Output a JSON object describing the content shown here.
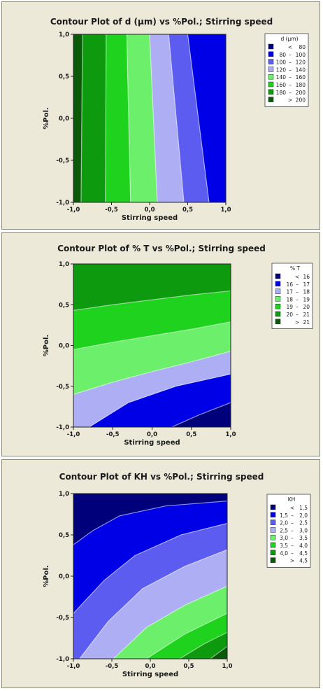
{
  "chart_data": [
    {
      "type": "contour",
      "title": "Contour Plot of d (µm) vs %Pol.; Stirring speed",
      "xlabel": "Stirring speed",
      "ylabel": "%Pol.",
      "xlim": [
        -1.0,
        1.0
      ],
      "ylim": [
        -1.0,
        1.0
      ],
      "x_ticks": [
        "-1,0",
        "-0,5",
        "0,0",
        "0,5",
        "1,0"
      ],
      "y_ticks": [
        "-1,0",
        "-0,5",
        "0,0",
        "0,5",
        "1,0"
      ],
      "legend_title": "d (µm)",
      "legend_position": "right",
      "legend": [
        {
          "lo": "",
          "sep": "<",
          "hi": "80",
          "color": "#00007a"
        },
        {
          "lo": "80",
          "sep": "–",
          "hi": "100",
          "color": "#0000e6"
        },
        {
          "lo": "100",
          "sep": "–",
          "hi": "120",
          "color": "#5c5cf0"
        },
        {
          "lo": "120",
          "sep": "–",
          "hi": "140",
          "color": "#aeaef5"
        },
        {
          "lo": "140",
          "sep": "–",
          "hi": "160",
          "color": "#6cf06c"
        },
        {
          "lo": "160",
          "sep": "–",
          "hi": "180",
          "color": "#1ed21e"
        },
        {
          "lo": "180",
          "sep": "–",
          "hi": "200",
          "color": "#0e9a0e"
        },
        {
          "lo": "",
          "sep": ">",
          "hi": "200",
          "color": "#0a5a0a"
        }
      ],
      "contour_lines": [
        {
          "level": 200,
          "points": [
            [
              -0.9,
              -1.0
            ],
            [
              -0.88,
              1.0
            ]
          ]
        },
        {
          "level": 180,
          "points": [
            [
              -0.58,
              -1.0
            ],
            [
              -0.57,
              1.0
            ]
          ]
        },
        {
          "level": 160,
          "points": [
            [
              -0.25,
              -1.0
            ],
            [
              -0.3,
              1.0
            ]
          ]
        },
        {
          "level": 140,
          "points": [
            [
              0.1,
              -1.0
            ],
            [
              0.0,
              1.0
            ]
          ]
        },
        {
          "level": 120,
          "points": [
            [
              0.45,
              -1.0
            ],
            [
              0.25,
              1.0
            ]
          ]
        },
        {
          "level": 100,
          "points": [
            [
              0.78,
              -1.0
            ],
            [
              0.5,
              1.0
            ]
          ]
        }
      ]
    },
    {
      "type": "contour",
      "title": "Contour Plot of % T vs %Pol.; Stirring speed",
      "xlabel": "Stirring speed",
      "ylabel": "%Pol.",
      "xlim": [
        -1.0,
        1.0
      ],
      "ylim": [
        -1.0,
        1.0
      ],
      "x_ticks": [
        "-1,0",
        "-0,5",
        "0,0",
        "0,5",
        "1,0"
      ],
      "y_ticks": [
        "-1,0",
        "-0,5",
        "0,0",
        "0,5",
        "1,0"
      ],
      "legend_title": "% T",
      "legend_position": "right",
      "legend": [
        {
          "lo": "",
          "sep": "<",
          "hi": "16",
          "color": "#00007a"
        },
        {
          "lo": "16",
          "sep": "–",
          "hi": "17",
          "color": "#0000e6"
        },
        {
          "lo": "17",
          "sep": "–",
          "hi": "18",
          "color": "#aeaef5"
        },
        {
          "lo": "18",
          "sep": "–",
          "hi": "19",
          "color": "#6cf06c"
        },
        {
          "lo": "19",
          "sep": "–",
          "hi": "20",
          "color": "#1ed21e"
        },
        {
          "lo": "20",
          "sep": "–",
          "hi": "21",
          "color": "#0e9a0e"
        },
        {
          "lo": "",
          "sep": ">",
          "hi": "21",
          "color": "#0a5a0a"
        }
      ],
      "contour_lines": [
        {
          "level": 16,
          "points": [
            [
              0.25,
              -1.0
            ],
            [
              0.6,
              -0.85
            ],
            [
              1.0,
              -0.7
            ]
          ]
        },
        {
          "level": 17,
          "points": [
            [
              -0.8,
              -1.0
            ],
            [
              -0.3,
              -0.7
            ],
            [
              0.3,
              -0.5
            ],
            [
              1.0,
              -0.35
            ]
          ]
        },
        {
          "level": 18,
          "points": [
            [
              -1.0,
              -0.6
            ],
            [
              -0.5,
              -0.45
            ],
            [
              0.0,
              -0.32
            ],
            [
              0.5,
              -0.2
            ],
            [
              1.0,
              -0.07
            ]
          ]
        },
        {
          "level": 19,
          "points": [
            [
              -1.0,
              -0.05
            ],
            [
              -0.5,
              0.04
            ],
            [
              0.0,
              0.12
            ],
            [
              0.5,
              0.2
            ],
            [
              1.0,
              0.29
            ]
          ]
        },
        {
          "level": 20,
          "points": [
            [
              -1.0,
              0.43
            ],
            [
              -0.5,
              0.5
            ],
            [
              0.0,
              0.56
            ],
            [
              0.5,
              0.62
            ],
            [
              1.0,
              0.67
            ]
          ]
        }
      ]
    },
    {
      "type": "contour",
      "title": "Contour Plot of KH vs %Pol.; Stirring speed",
      "xlabel": "Stirring speed",
      "ylabel": "%Pol.",
      "xlim": [
        -1.0,
        1.0
      ],
      "ylim": [
        -1.0,
        1.0
      ],
      "x_ticks": [
        "-1,0",
        "-0,5",
        "0,0",
        "0,5",
        "1,0"
      ],
      "y_ticks": [
        "-1,0",
        "-0,5",
        "0,0",
        "0,5",
        "1,0"
      ],
      "legend_title": "KH",
      "legend_position": "right",
      "legend": [
        {
          "lo": "",
          "sep": "<",
          "hi": "1,5",
          "color": "#00007a"
        },
        {
          "lo": "1,5",
          "sep": "–",
          "hi": "2,0",
          "color": "#0000e6"
        },
        {
          "lo": "2,0",
          "sep": "–",
          "hi": "2,5",
          "color": "#5c5cf0"
        },
        {
          "lo": "2,5",
          "sep": "–",
          "hi": "3,0",
          "color": "#aeaef5"
        },
        {
          "lo": "3,0",
          "sep": "–",
          "hi": "3,5",
          "color": "#6cf06c"
        },
        {
          "lo": "3,5",
          "sep": "–",
          "hi": "4,0",
          "color": "#1ed21e"
        },
        {
          "lo": "4,0",
          "sep": "–",
          "hi": "4,5",
          "color": "#0e9a0e"
        },
        {
          "lo": "",
          "sep": ">",
          "hi": "4,5",
          "color": "#0a5a0a"
        }
      ],
      "contour_lines": [
        {
          "level": 1.5,
          "points": [
            [
              -1.0,
              0.38
            ],
            [
              -0.75,
              0.55
            ],
            [
              -0.4,
              0.73
            ],
            [
              0.2,
              0.85
            ],
            [
              1.0,
              0.91
            ]
          ]
        },
        {
          "level": 2.0,
          "points": [
            [
              -1.0,
              -0.45
            ],
            [
              -0.6,
              -0.05
            ],
            [
              -0.2,
              0.25
            ],
            [
              0.4,
              0.5
            ],
            [
              1.0,
              0.64
            ]
          ]
        },
        {
          "level": 2.5,
          "points": [
            [
              -0.92,
              -1.0
            ],
            [
              -0.55,
              -0.55
            ],
            [
              -0.1,
              -0.15
            ],
            [
              0.45,
              0.12
            ],
            [
              1.0,
              0.32
            ]
          ]
        },
        {
          "level": 3.0,
          "points": [
            [
              -0.48,
              -1.0
            ],
            [
              -0.05,
              -0.62
            ],
            [
              0.45,
              -0.35
            ],
            [
              1.0,
              -0.12
            ]
          ]
        },
        {
          "level": 3.5,
          "points": [
            [
              -0.05,
              -1.0
            ],
            [
              0.45,
              -0.7
            ],
            [
              1.0,
              -0.45
            ]
          ]
        },
        {
          "level": 4.0,
          "points": [
            [
              0.38,
              -1.0
            ],
            [
              0.7,
              -0.82
            ],
            [
              1.0,
              -0.68
            ]
          ]
        },
        {
          "level": 4.5,
          "points": [
            [
              0.78,
              -1.0
            ],
            [
              1.0,
              -0.85
            ]
          ]
        }
      ]
    }
  ]
}
